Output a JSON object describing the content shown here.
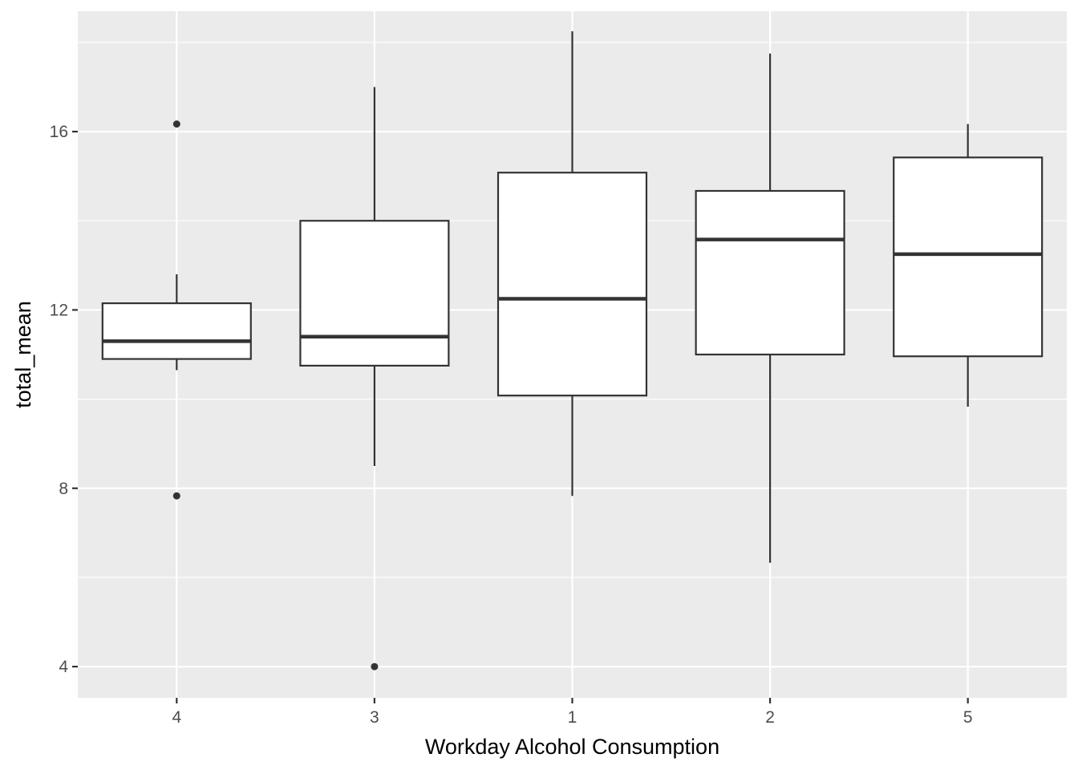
{
  "chart_data": {
    "type": "boxplot",
    "xlabel": "Workday Alcohol Consumption",
    "ylabel": "total_mean",
    "ylim": [
      3.3,
      18.7
    ],
    "y_major_ticks": [
      4,
      8,
      12,
      16
    ],
    "y_minor_ticks": [
      6,
      10,
      14,
      18
    ],
    "categories": [
      "4",
      "3",
      "1",
      "2",
      "5"
    ],
    "boxes": [
      {
        "category": "4",
        "whisker_low": 10.65,
        "q1": 10.9,
        "median": 11.3,
        "q3": 12.15,
        "whisker_high": 12.8,
        "outliers": [
          16.17,
          7.83
        ]
      },
      {
        "category": "3",
        "whisker_low": 8.5,
        "q1": 10.75,
        "median": 11.4,
        "q3": 14.0,
        "whisker_high": 17.0,
        "outliers": [
          4.0
        ]
      },
      {
        "category": "1",
        "whisker_low": 7.83,
        "q1": 10.08,
        "median": 12.25,
        "q3": 15.08,
        "whisker_high": 18.25,
        "outliers": []
      },
      {
        "category": "2",
        "whisker_low": 6.33,
        "q1": 11.0,
        "median": 13.58,
        "q3": 14.67,
        "whisker_high": 17.75,
        "outliers": []
      },
      {
        "category": "5",
        "whisker_low": 9.83,
        "q1": 10.96,
        "median": 13.25,
        "q3": 15.42,
        "whisker_high": 16.17,
        "outliers": []
      }
    ],
    "colors": {
      "panel_background": "#EBEBEB",
      "grid": "#FFFFFF",
      "box_fill": "#FFFFFF",
      "box_line": "#333333",
      "tick_text": "#4D4D4D",
      "axis_title": "#000000"
    },
    "grid": true,
    "legend": "none"
  }
}
